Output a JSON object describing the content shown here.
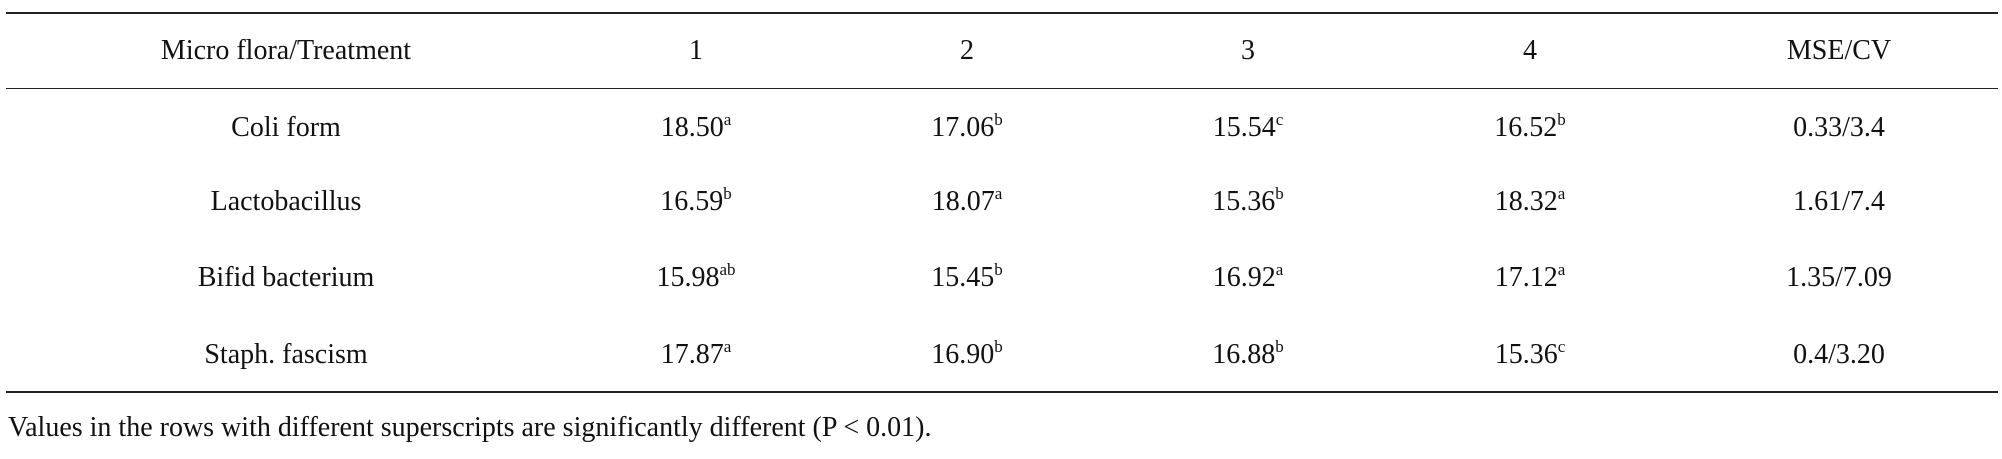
{
  "table": {
    "header": [
      "Micro flora/Treatment",
      "1",
      "2",
      "3",
      "4",
      "MSE/CV"
    ],
    "rows": [
      [
        {
          "text": "Coli form"
        },
        {
          "text": "18.50",
          "sup": "a"
        },
        {
          "text": "17.06",
          "sup": "b"
        },
        {
          "text": "15.54",
          "sup": "c"
        },
        {
          "text": "16.52",
          "sup": "b"
        },
        {
          "text": "0.33/3.4"
        }
      ],
      [
        {
          "text": "Lactobacillus"
        },
        {
          "text": "16.59",
          "sup": "b"
        },
        {
          "text": "18.07",
          "sup": "a"
        },
        {
          "text": "15.36",
          "sup": "b"
        },
        {
          "text": "18.32",
          "sup": "a"
        },
        {
          "text": "1.61/7.4"
        }
      ],
      [
        {
          "text": "Bifid bacterium"
        },
        {
          "text": "15.98",
          "sup": "ab"
        },
        {
          "text": "15.45",
          "sup": "b"
        },
        {
          "text": "16.92",
          "sup": "a"
        },
        {
          "text": "17.12",
          "sup": "a"
        },
        {
          "text": "1.35/7.09"
        }
      ],
      [
        {
          "text": "Staph. fascism"
        },
        {
          "text": "17.87",
          "sup": "a"
        },
        {
          "text": "16.90",
          "sup": "b"
        },
        {
          "text": "16.88",
          "sup": "b"
        },
        {
          "text": "15.36",
          "sup": "c"
        },
        {
          "text": "0.4/3.20"
        }
      ]
    ],
    "note": "Values in the rows with different superscripts are significantly different (P < 0.01)."
  }
}
